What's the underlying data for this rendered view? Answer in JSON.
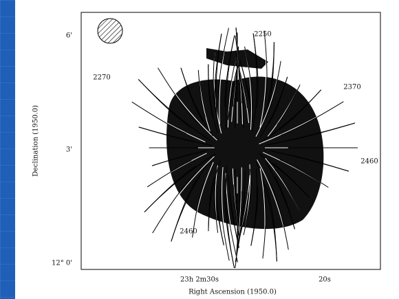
{
  "figure": {
    "y_axis_label": "Declination (1950.0)",
    "x_axis_label": "Right Ascension (1950.0)",
    "yticks": [
      "6'",
      "3'",
      "12° 0'"
    ],
    "xticks": [
      "23h 2m30s",
      "20s"
    ],
    "contour_labels": [
      "2250",
      "2270",
      "2370",
      "2460",
      "2460"
    ]
  }
}
